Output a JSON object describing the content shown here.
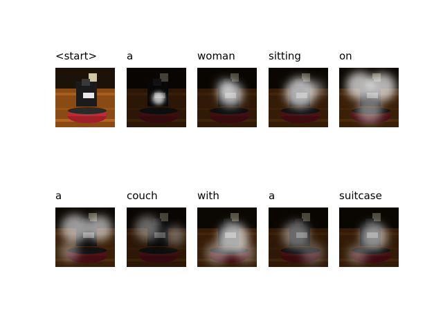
{
  "figure": {
    "words": [
      "<start>",
      "a",
      "woman",
      "sitting",
      "on",
      "a",
      "couch",
      "with",
      "a",
      "suitcase"
    ],
    "attention_intensity": [
      0,
      0.35,
      0.45,
      0.55,
      0.7,
      0.65,
      0.35,
      0.6,
      0.4,
      0.5
    ]
  }
}
